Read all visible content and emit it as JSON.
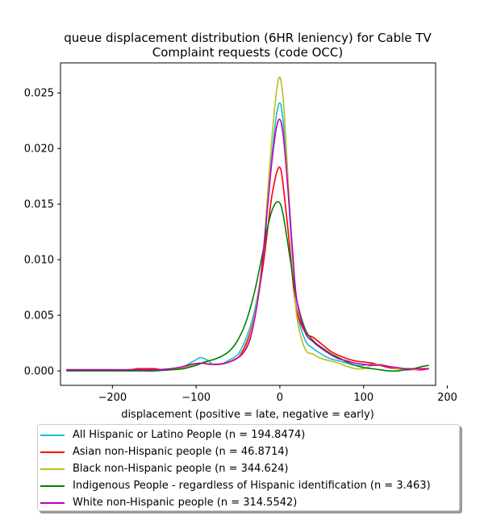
{
  "chart_data": {
    "type": "line",
    "title_line1": "queue displacement distribution (6HR leniency) for Cable TV",
    "title_line2": "Complaint  requests (code OCC)",
    "xlabel": "displacement (positive = late, negative = early)",
    "ylabel": "",
    "xlim": [
      -262,
      186
    ],
    "ylim": [
      -0.0013,
      0.0277
    ],
    "xticks": [
      -200,
      -100,
      0,
      100,
      200
    ],
    "xtick_labels": [
      "−200",
      "−100",
      "0",
      "100",
      "200"
    ],
    "yticks": [
      0.0,
      0.005,
      0.01,
      0.015,
      0.02,
      0.025
    ],
    "ytick_labels": [
      "0.000",
      "0.005",
      "0.010",
      "0.015",
      "0.020",
      "0.025"
    ],
    "grid": false,
    "legend_position": "below",
    "series": [
      {
        "name": "All Hispanic or Latino People (n = 194.8474)",
        "color": "#17becf",
        "x": [
          -255,
          -230,
          -200,
          -170,
          -150,
          -130,
          -115,
          -105,
          -100,
          -95,
          -90,
          -85,
          -80,
          -70,
          -60,
          -50,
          -40,
          -30,
          -20,
          -15,
          -10,
          -5,
          -2,
          0,
          2,
          5,
          10,
          15,
          20,
          30,
          40,
          50,
          60,
          70,
          80,
          90,
          100,
          110,
          120,
          130,
          140,
          150,
          160,
          170,
          178
        ],
        "y": [
          0.0001,
          0.0001,
          0.0001,
          0.0001,
          0.0001,
          0.0002,
          0.0004,
          0.0008,
          0.001,
          0.0012,
          0.0011,
          0.0009,
          0.0006,
          0.0006,
          0.001,
          0.0015,
          0.003,
          0.0055,
          0.01,
          0.0145,
          0.019,
          0.0225,
          0.0238,
          0.0241,
          0.0236,
          0.0215,
          0.016,
          0.01,
          0.0055,
          0.0028,
          0.002,
          0.0015,
          0.0011,
          0.0009,
          0.0007,
          0.0005,
          0.0005,
          0.0006,
          0.0005,
          0.0003,
          0.0002,
          0.0002,
          0.0002,
          0.0002,
          0.0002
        ]
      },
      {
        "name": "Asian non-Hispanic people (n = 46.8714)",
        "color": "#ff0000",
        "x": [
          -255,
          -230,
          -200,
          -180,
          -170,
          -160,
          -150,
          -140,
          -130,
          -120,
          -110,
          -100,
          -90,
          -80,
          -70,
          -60,
          -50,
          -40,
          -30,
          -20,
          -15,
          -10,
          -5,
          -2,
          0,
          2,
          5,
          10,
          15,
          20,
          30,
          40,
          50,
          60,
          70,
          80,
          90,
          100,
          110,
          120,
          130,
          140,
          150,
          160,
          170,
          178
        ],
        "y": [
          0.0001,
          0.0001,
          0.0001,
          0.0001,
          0.0002,
          0.0002,
          0.0002,
          0.0001,
          0.0001,
          0.0002,
          0.0004,
          0.0006,
          0.0007,
          0.0006,
          0.0006,
          0.0008,
          0.0012,
          0.0025,
          0.005,
          0.0095,
          0.0125,
          0.0155,
          0.0175,
          0.0182,
          0.0183,
          0.0178,
          0.016,
          0.0125,
          0.0085,
          0.0055,
          0.0035,
          0.003,
          0.0024,
          0.0018,
          0.0014,
          0.0011,
          0.0009,
          0.0008,
          0.0007,
          0.0005,
          0.0003,
          0.0002,
          0.0001,
          0.0001,
          0.0001,
          0.0002
        ]
      },
      {
        "name": "Black non-Hispanic people (n = 344.624)",
        "color": "#bcbd22",
        "x": [
          -255,
          -230,
          -200,
          -170,
          -150,
          -130,
          -120,
          -110,
          -100,
          -90,
          -80,
          -70,
          -60,
          -50,
          -40,
          -30,
          -20,
          -15,
          -10,
          -5,
          -2,
          0,
          2,
          5,
          10,
          15,
          20,
          30,
          40,
          50,
          60,
          70,
          80,
          90,
          100,
          110,
          120,
          130,
          140,
          150,
          160,
          170,
          178
        ],
        "y": [
          0.0001,
          0.0001,
          0.0001,
          0.0001,
          0.0001,
          0.0001,
          0.0002,
          0.0004,
          0.0006,
          0.0007,
          0.0006,
          0.0006,
          0.0008,
          0.0012,
          0.0022,
          0.005,
          0.0105,
          0.0155,
          0.0205,
          0.0245,
          0.0261,
          0.0264,
          0.0258,
          0.0235,
          0.017,
          0.0105,
          0.005,
          0.002,
          0.0015,
          0.0011,
          0.0009,
          0.0007,
          0.0004,
          0.0002,
          0.0002,
          0.0005,
          0.0006,
          0.0004,
          0.0002,
          0.0001,
          0.0001,
          0.0002,
          0.0002
        ]
      },
      {
        "name": "Indigenous People - regardless of Hispanic identification (n = 3.463)",
        "color": "#008000",
        "x": [
          -255,
          -230,
          -200,
          -170,
          -150,
          -130,
          -115,
          -100,
          -90,
          -80,
          -70,
          -60,
          -50,
          -40,
          -30,
          -20,
          -15,
          -10,
          -5,
          -2,
          0,
          2,
          5,
          10,
          15,
          20,
          30,
          40,
          50,
          60,
          70,
          80,
          90,
          100,
          110,
          120,
          130,
          140,
          150,
          160,
          170,
          178
        ],
        "y": [
          0.0,
          0.0,
          0.0,
          0.0,
          0.0,
          0.0001,
          0.0002,
          0.0005,
          0.0008,
          0.001,
          0.0013,
          0.0018,
          0.0028,
          0.0045,
          0.0072,
          0.0108,
          0.0128,
          0.0143,
          0.0151,
          0.0152,
          0.0151,
          0.0147,
          0.0136,
          0.0112,
          0.0087,
          0.0064,
          0.0038,
          0.0027,
          0.0021,
          0.0016,
          0.0012,
          0.0008,
          0.0005,
          0.0003,
          0.0002,
          0.0001,
          0.0,
          0.0,
          0.0001,
          0.0002,
          0.0004,
          0.0005
        ]
      },
      {
        "name": "White non-Hispanic people (n = 314.5542)",
        "color": "#bf00bf",
        "x": [
          -255,
          -230,
          -200,
          -170,
          -150,
          -130,
          -115,
          -105,
          -95,
          -85,
          -75,
          -65,
          -55,
          -45,
          -35,
          -25,
          -20,
          -15,
          -10,
          -5,
          -2,
          0,
          2,
          5,
          10,
          15,
          20,
          30,
          40,
          50,
          60,
          70,
          80,
          90,
          100,
          110,
          120,
          130,
          140,
          150,
          160,
          170,
          178
        ],
        "y": [
          0.0001,
          0.0001,
          0.0001,
          0.0001,
          0.0001,
          0.0002,
          0.0004,
          0.0006,
          0.0007,
          0.0006,
          0.0006,
          0.0007,
          0.001,
          0.0015,
          0.003,
          0.007,
          0.0105,
          0.0145,
          0.0185,
          0.0215,
          0.0225,
          0.0226,
          0.0222,
          0.0205,
          0.016,
          0.011,
          0.0065,
          0.0035,
          0.0026,
          0.002,
          0.0015,
          0.0011,
          0.0009,
          0.0007,
          0.0006,
          0.0005,
          0.0005,
          0.0004,
          0.0003,
          0.0002,
          0.0002,
          0.0002,
          0.0002
        ]
      }
    ]
  }
}
